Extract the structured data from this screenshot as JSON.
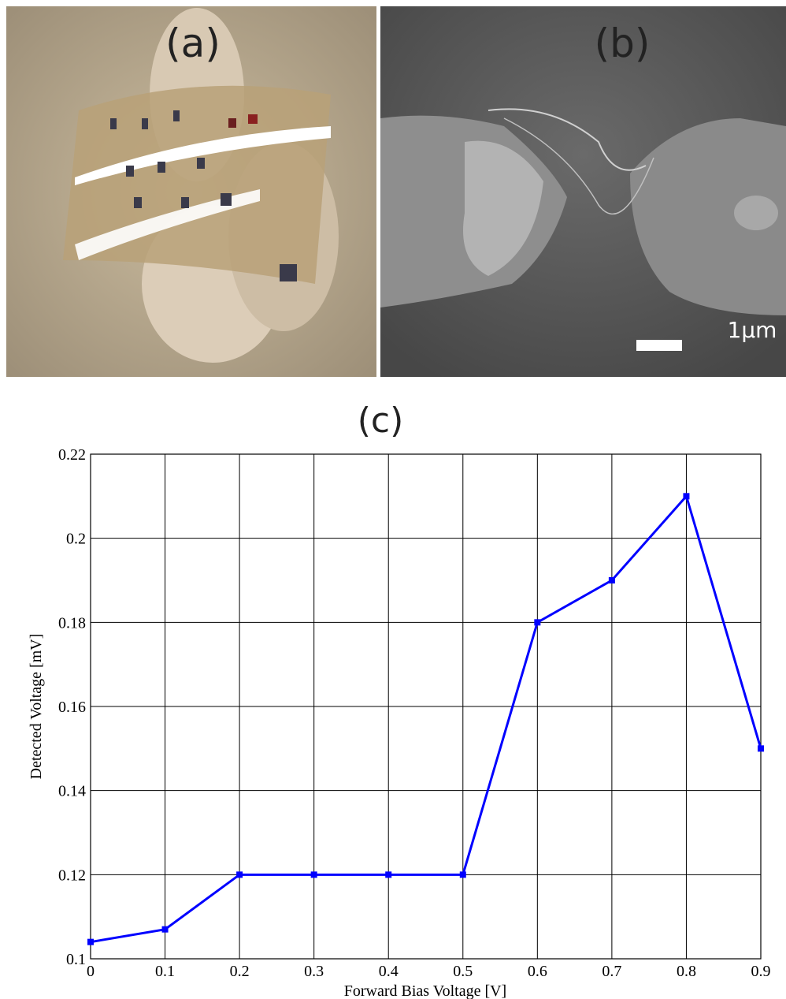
{
  "panels": {
    "a_label": "(a)",
    "b_label": "(b)",
    "scale_bar_label": "1μm"
  },
  "chart_data": {
    "type": "line",
    "title": "(c)",
    "x_label": "Forward Bias Voltage [V]",
    "y_label": "Detected Voltage [mV]",
    "x": [
      0,
      0.1,
      0.2,
      0.3,
      0.4,
      0.5,
      0.6,
      0.7,
      0.8,
      0.9
    ],
    "values": [
      0.104,
      0.107,
      0.12,
      0.12,
      0.12,
      0.12,
      0.18,
      0.19,
      0.21,
      0.15
    ],
    "color": "#0000ff",
    "xlim": [
      0,
      0.9
    ],
    "xticks": [
      0,
      0.1,
      0.2,
      0.3,
      0.4,
      0.5,
      0.6,
      0.7,
      0.8,
      0.9
    ],
    "ylim": [
      0.1,
      0.22
    ],
    "yticks": [
      0.1,
      0.12,
      0.14,
      0.16,
      0.18,
      0.2,
      0.22
    ],
    "grid": true
  }
}
